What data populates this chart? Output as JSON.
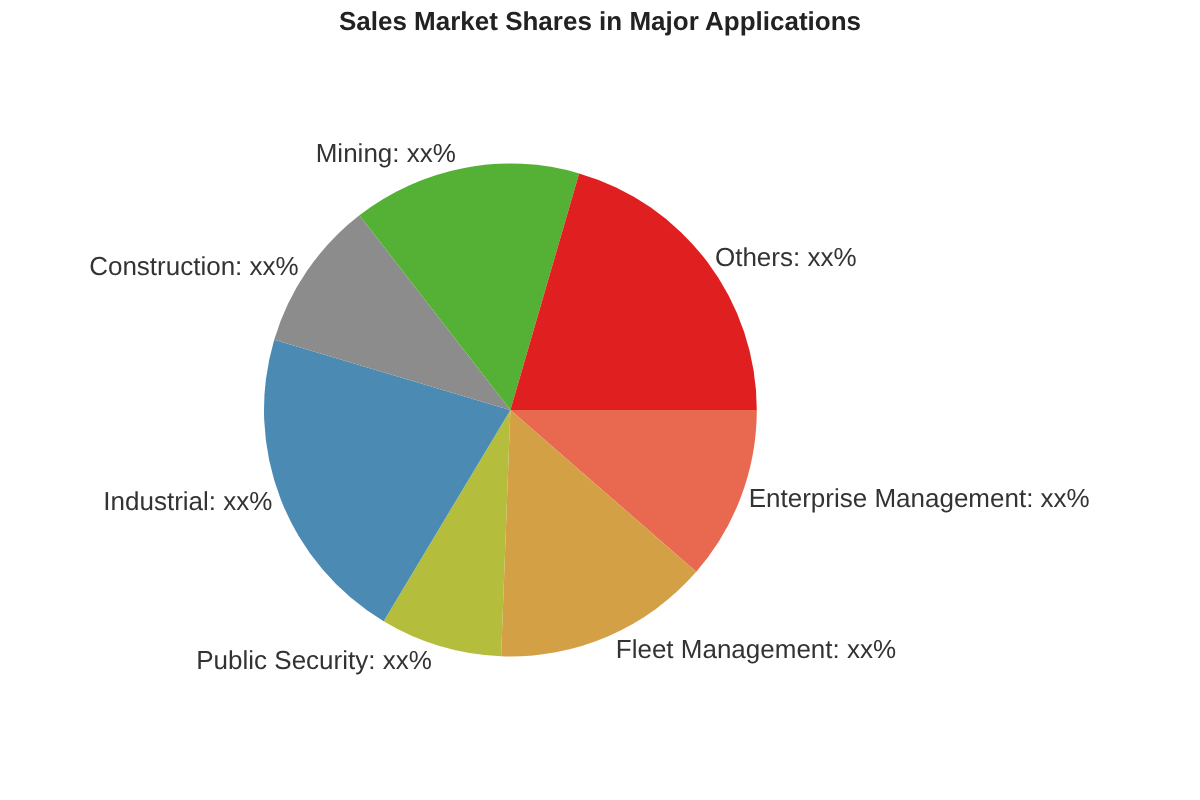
{
  "chart_data": {
    "type": "pie",
    "title": "Sales Market Shares in Major Applications",
    "categories": [
      "Enterprise Management",
      "Fleet Management",
      "Public Security",
      "Industrial",
      "Construction",
      "Mining",
      "Others"
    ],
    "values": [
      11.4,
      14.2,
      8,
      21,
      9.9,
      15,
      20.5
    ],
    "value_labels": [
      "xx%",
      "xx%",
      "xx%",
      "xx%",
      "xx%",
      "xx%",
      "xx%"
    ],
    "colors": [
      "#e8694f",
      "#d4a046",
      "#b5bd3c",
      "#4a8ab3",
      "#8c8c8c",
      "#55b135",
      "#e02020"
    ],
    "legend": false
  }
}
